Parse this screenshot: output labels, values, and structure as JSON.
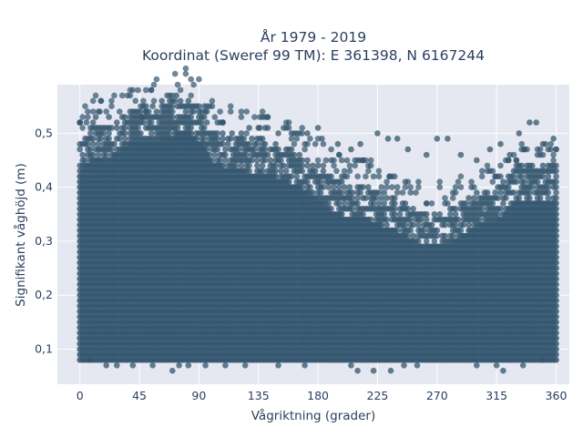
{
  "chart_data": {
    "type": "scatter",
    "title_lines": [
      "År 1979 - 2019",
      "Koordinat (Sweref 99 TM): E 361398, N 6167244"
    ],
    "xlabel": "Vågriktning (grader)",
    "ylabel": "Signifikant våghöjd (m)",
    "xlim": [
      -17,
      370
    ],
    "ylim": [
      0.035,
      0.59
    ],
    "xticks": [
      0,
      45,
      90,
      135,
      180,
      225,
      270,
      315,
      360
    ],
    "yticks": [
      0.1,
      0.2,
      0.3,
      0.4,
      0.5
    ],
    "ytick_labels": [
      "0,1",
      "0,2",
      "0,3",
      "0,4",
      "0,5"
    ],
    "grid": true,
    "legend": "none",
    "marker_color": "#33566e",
    "plot_bg": "#e5e8f0",
    "x_step": 2,
    "y_step": 0.01,
    "dense_y_min": 0.08,
    "upper_envelope": [
      [
        0,
        0.49
      ],
      [
        10,
        0.52
      ],
      [
        20,
        0.51
      ],
      [
        30,
        0.53
      ],
      [
        45,
        0.55
      ],
      [
        60,
        0.55
      ],
      [
        70,
        0.56
      ],
      [
        80,
        0.57
      ],
      [
        90,
        0.55
      ],
      [
        100,
        0.51
      ],
      [
        110,
        0.5
      ],
      [
        125,
        0.49
      ],
      [
        140,
        0.49
      ],
      [
        160,
        0.47
      ],
      [
        180,
        0.44
      ],
      [
        190,
        0.42
      ],
      [
        200,
        0.41
      ],
      [
        220,
        0.4
      ],
      [
        240,
        0.38
      ],
      [
        260,
        0.35
      ],
      [
        280,
        0.36
      ],
      [
        300,
        0.39
      ],
      [
        315,
        0.4
      ],
      [
        330,
        0.44
      ],
      [
        345,
        0.44
      ],
      [
        360,
        0.44
      ]
    ],
    "outliers_high": [
      [
        0,
        0.52
      ],
      [
        5,
        0.52
      ],
      [
        12,
        0.53
      ],
      [
        15,
        0.54
      ],
      [
        22,
        0.53
      ],
      [
        38,
        0.54
      ],
      [
        47,
        0.53
      ],
      [
        50,
        0.54
      ],
      [
        55,
        0.55
      ],
      [
        62,
        0.56
      ],
      [
        68,
        0.56
      ],
      [
        73,
        0.57
      ],
      [
        88,
        0.55
      ],
      [
        95,
        0.54
      ],
      [
        108,
        0.52
      ],
      [
        115,
        0.5
      ],
      [
        122,
        0.5
      ],
      [
        128,
        0.51
      ],
      [
        135,
        0.51
      ],
      [
        142,
        0.51
      ],
      [
        150,
        0.5
      ],
      [
        160,
        0.5
      ],
      [
        172,
        0.5
      ],
      [
        180,
        0.51
      ],
      [
        183,
        0.49
      ],
      [
        195,
        0.48
      ],
      [
        205,
        0.47
      ],
      [
        212,
        0.48
      ],
      [
        225,
        0.5
      ],
      [
        233,
        0.49
      ],
      [
        240,
        0.49
      ],
      [
        248,
        0.47
      ],
      [
        262,
        0.46
      ],
      [
        270,
        0.49
      ],
      [
        278,
        0.49
      ],
      [
        288,
        0.46
      ],
      [
        300,
        0.45
      ],
      [
        310,
        0.47
      ],
      [
        318,
        0.48
      ],
      [
        325,
        0.46
      ],
      [
        332,
        0.5
      ],
      [
        340,
        0.52
      ],
      [
        345,
        0.52
      ],
      [
        350,
        0.48
      ],
      [
        358,
        0.49
      ]
    ],
    "outliers_low": [
      [
        8,
        0.08
      ],
      [
        20,
        0.07
      ],
      [
        28,
        0.07
      ],
      [
        40,
        0.07
      ],
      [
        55,
        0.07
      ],
      [
        70,
        0.06
      ],
      [
        75,
        0.07
      ],
      [
        82,
        0.07
      ],
      [
        95,
        0.07
      ],
      [
        110,
        0.07
      ],
      [
        125,
        0.07
      ],
      [
        150,
        0.07
      ],
      [
        170,
        0.07
      ],
      [
        205,
        0.07
      ],
      [
        210,
        0.06
      ],
      [
        222,
        0.06
      ],
      [
        235,
        0.06
      ],
      [
        245,
        0.07
      ],
      [
        255,
        0.07
      ],
      [
        300,
        0.07
      ],
      [
        315,
        0.07
      ],
      [
        320,
        0.06
      ],
      [
        335,
        0.07
      ],
      [
        350,
        0.08
      ]
    ]
  }
}
